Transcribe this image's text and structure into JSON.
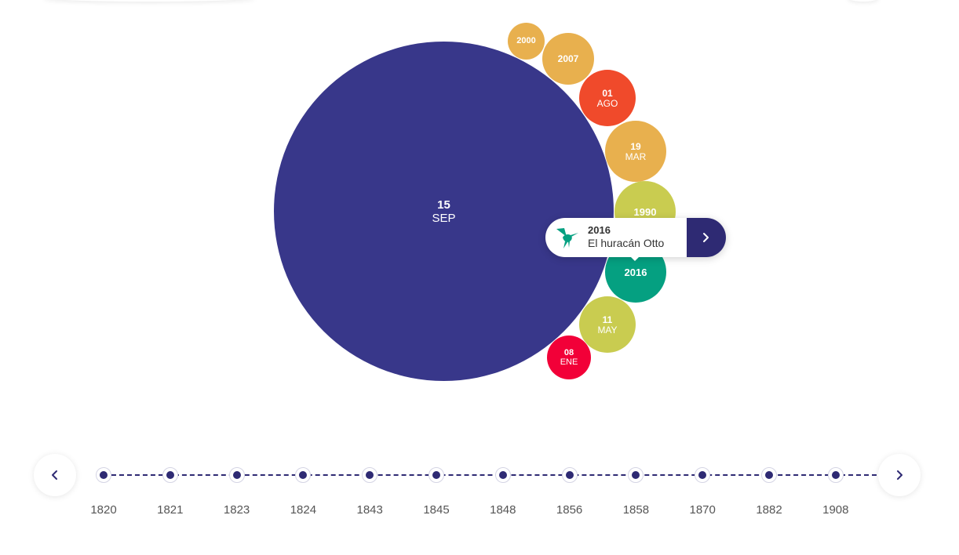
{
  "colors": {
    "navy": "#38378a",
    "orange": "#e8b04e",
    "red_orange": "#f04a2b",
    "lime": "#c9cc50",
    "teal": "#05a081",
    "red": "#f20038",
    "dark_button": "#2e2a73"
  },
  "bubbles": [
    {
      "line1": "15",
      "line2": "SEP",
      "color": "#38378a"
    },
    {
      "line1": "2000",
      "line2": "",
      "color": "#e8b04e"
    },
    {
      "line1": "2007",
      "line2": "",
      "color": "#e8b04e"
    },
    {
      "line1": "01",
      "line2": "AGO",
      "color": "#f04a2b"
    },
    {
      "line1": "19",
      "line2": "MAR",
      "color": "#e8b04e"
    },
    {
      "line1": "1990",
      "line2": "",
      "color": "#c9cc50"
    },
    {
      "line1": "2016",
      "line2": "",
      "color": "#05a081"
    },
    {
      "line1": "11",
      "line2": "MAY",
      "color": "#c9cc50"
    },
    {
      "line1": "08",
      "line2": "ENE",
      "color": "#f20038"
    }
  ],
  "tooltip": {
    "year": "2016",
    "title": "El huracán Otto",
    "icon": "hummingbird-icon",
    "action_icon": "chevron-right-icon"
  },
  "timeline": {
    "prev_icon": "chevron-left-icon",
    "next_icon": "chevron-right-icon",
    "years": [
      "1820",
      "1821",
      "1823",
      "1824",
      "1843",
      "1845",
      "1848",
      "1856",
      "1858",
      "1870",
      "1882",
      "1908"
    ]
  }
}
